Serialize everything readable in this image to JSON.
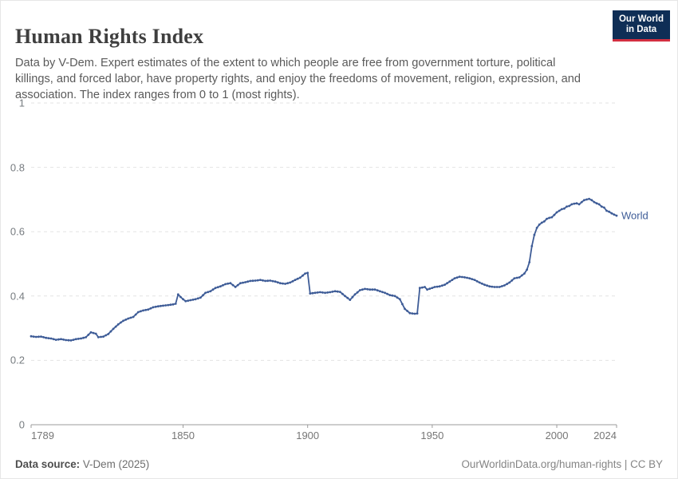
{
  "header": {
    "title": "Human Rights Index",
    "subtitle": "Data by V-Dem. Expert estimates of the extent to which people are free from government torture, political killings, and forced labor, have property rights, and enjoy the freedoms of movement, religion, expression, and association. The index ranges from 0 to 1 (most rights)."
  },
  "logo": {
    "line1": "Our World",
    "line2": "in Data",
    "bg_color": "#0f2e56",
    "bar_color": "#d32f41"
  },
  "chart_data": {
    "type": "line",
    "title": "Human Rights Index",
    "ylabel": "",
    "xlabel": "",
    "ylim": [
      0,
      1
    ],
    "xlim": [
      1789,
      2024
    ],
    "grid": "dashed-horizontal",
    "legend_position": "end-of-line",
    "series": [
      {
        "name": "World",
        "color": "#3e5c97",
        "points": [
          [
            1789,
            0.275
          ],
          [
            1791,
            0.273
          ],
          [
            1793,
            0.274
          ],
          [
            1795,
            0.27
          ],
          [
            1797,
            0.268
          ],
          [
            1799,
            0.264
          ],
          [
            1801,
            0.266
          ],
          [
            1803,
            0.263
          ],
          [
            1805,
            0.262
          ],
          [
            1807,
            0.266
          ],
          [
            1809,
            0.268
          ],
          [
            1811,
            0.272
          ],
          [
            1813,
            0.287
          ],
          [
            1815,
            0.283
          ],
          [
            1816,
            0.272
          ],
          [
            1818,
            0.274
          ],
          [
            1820,
            0.282
          ],
          [
            1822,
            0.298
          ],
          [
            1824,
            0.312
          ],
          [
            1826,
            0.323
          ],
          [
            1828,
            0.33
          ],
          [
            1830,
            0.335
          ],
          [
            1832,
            0.35
          ],
          [
            1834,
            0.355
          ],
          [
            1836,
            0.358
          ],
          [
            1838,
            0.365
          ],
          [
            1840,
            0.368
          ],
          [
            1842,
            0.37
          ],
          [
            1844,
            0.372
          ],
          [
            1846,
            0.374
          ],
          [
            1847,
            0.376
          ],
          [
            1848,
            0.405
          ],
          [
            1849,
            0.397
          ],
          [
            1850,
            0.39
          ],
          [
            1851,
            0.384
          ],
          [
            1853,
            0.387
          ],
          [
            1855,
            0.39
          ],
          [
            1857,
            0.395
          ],
          [
            1859,
            0.41
          ],
          [
            1861,
            0.415
          ],
          [
            1863,
            0.425
          ],
          [
            1865,
            0.43
          ],
          [
            1867,
            0.437
          ],
          [
            1869,
            0.44
          ],
          [
            1871,
            0.428
          ],
          [
            1873,
            0.44
          ],
          [
            1875,
            0.443
          ],
          [
            1877,
            0.447
          ],
          [
            1879,
            0.448
          ],
          [
            1881,
            0.45
          ],
          [
            1883,
            0.447
          ],
          [
            1885,
            0.448
          ],
          [
            1887,
            0.445
          ],
          [
            1889,
            0.44
          ],
          [
            1891,
            0.438
          ],
          [
            1893,
            0.442
          ],
          [
            1895,
            0.45
          ],
          [
            1897,
            0.457
          ],
          [
            1899,
            0.47
          ],
          [
            1900,
            0.472
          ],
          [
            1901,
            0.408
          ],
          [
            1903,
            0.41
          ],
          [
            1905,
            0.412
          ],
          [
            1907,
            0.41
          ],
          [
            1909,
            0.412
          ],
          [
            1911,
            0.415
          ],
          [
            1913,
            0.413
          ],
          [
            1915,
            0.4
          ],
          [
            1917,
            0.388
          ],
          [
            1919,
            0.405
          ],
          [
            1921,
            0.418
          ],
          [
            1923,
            0.422
          ],
          [
            1925,
            0.42
          ],
          [
            1927,
            0.42
          ],
          [
            1929,
            0.415
          ],
          [
            1931,
            0.41
          ],
          [
            1933,
            0.403
          ],
          [
            1935,
            0.4
          ],
          [
            1937,
            0.39
          ],
          [
            1939,
            0.36
          ],
          [
            1941,
            0.347
          ],
          [
            1943,
            0.345
          ],
          [
            1944,
            0.346
          ],
          [
            1945,
            0.425
          ],
          [
            1947,
            0.428
          ],
          [
            1948,
            0.42
          ],
          [
            1951,
            0.428
          ],
          [
            1953,
            0.43
          ],
          [
            1955,
            0.435
          ],
          [
            1957,
            0.445
          ],
          [
            1959,
            0.455
          ],
          [
            1961,
            0.46
          ],
          [
            1963,
            0.458
          ],
          [
            1965,
            0.455
          ],
          [
            1967,
            0.45
          ],
          [
            1969,
            0.442
          ],
          [
            1971,
            0.435
          ],
          [
            1973,
            0.43
          ],
          [
            1975,
            0.428
          ],
          [
            1977,
            0.428
          ],
          [
            1979,
            0.433
          ],
          [
            1981,
            0.442
          ],
          [
            1983,
            0.455
          ],
          [
            1985,
            0.458
          ],
          [
            1987,
            0.47
          ],
          [
            1988,
            0.482
          ],
          [
            1989,
            0.505
          ],
          [
            1990,
            0.555
          ],
          [
            1991,
            0.59
          ],
          [
            1992,
            0.612
          ],
          [
            1993,
            0.622
          ],
          [
            1994,
            0.628
          ],
          [
            1995,
            0.632
          ],
          [
            1996,
            0.64
          ],
          [
            1997,
            0.643
          ],
          [
            1998,
            0.645
          ],
          [
            1999,
            0.652
          ],
          [
            2000,
            0.66
          ],
          [
            2001,
            0.665
          ],
          [
            2002,
            0.67
          ],
          [
            2003,
            0.672
          ],
          [
            2004,
            0.678
          ],
          [
            2005,
            0.68
          ],
          [
            2006,
            0.685
          ],
          [
            2007,
            0.687
          ],
          [
            2008,
            0.688
          ],
          [
            2009,
            0.685
          ],
          [
            2010,
            0.692
          ],
          [
            2011,
            0.698
          ],
          [
            2012,
            0.7
          ],
          [
            2013,
            0.702
          ],
          [
            2014,
            0.698
          ],
          [
            2015,
            0.692
          ],
          [
            2016,
            0.688
          ],
          [
            2017,
            0.685
          ],
          [
            2018,
            0.678
          ],
          [
            2019,
            0.675
          ],
          [
            2020,
            0.665
          ],
          [
            2021,
            0.662
          ],
          [
            2022,
            0.657
          ],
          [
            2023,
            0.653
          ],
          [
            2024,
            0.65
          ]
        ]
      }
    ],
    "yticks": [
      {
        "v": 0,
        "label": "0"
      },
      {
        "v": 0.2,
        "label": "0.2"
      },
      {
        "v": 0.4,
        "label": "0.4"
      },
      {
        "v": 0.6,
        "label": "0.6"
      },
      {
        "v": 0.8,
        "label": "0.8"
      },
      {
        "v": 1,
        "label": "1"
      }
    ],
    "xticks": [
      {
        "year": 1789,
        "label": "1789",
        "anchor": "start"
      },
      {
        "year": 1850,
        "label": "1850",
        "anchor": "middle"
      },
      {
        "year": 1900,
        "label": "1900",
        "anchor": "middle"
      },
      {
        "year": 1950,
        "label": "1950",
        "anchor": "middle"
      },
      {
        "year": 2000,
        "label": "2000",
        "anchor": "middle"
      },
      {
        "year": 2024,
        "label": "2024",
        "anchor": "end"
      }
    ],
    "colors": {
      "grid": "#e3e3e3",
      "axis": "#9b9b9b",
      "tick_text": "#767676"
    }
  },
  "footer": {
    "source_label": "Data source:",
    "source_value": " V-Dem (2025)",
    "right_text": "OurWorldinData.org/human-rights | CC BY"
  }
}
